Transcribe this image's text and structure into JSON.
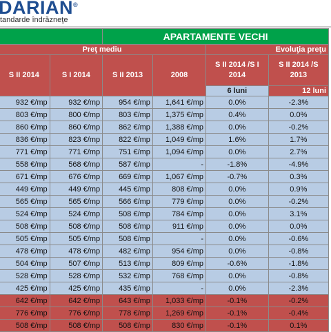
{
  "logo": {
    "name": "DARIAN",
    "tagline": "tandarde îndrăzneţe"
  },
  "table": {
    "title": "APARTAMENTE VECHI",
    "group_price": "Preţ mediu",
    "group_evolution": "Evoluţia preţu",
    "columns": [
      "S II 2014",
      "S I 2014",
      "S II 2013",
      "2008",
      "S II 2014 /S I 2014",
      "S II 2014 /S 2013"
    ],
    "subheaders": [
      "6 luni",
      "12 luni"
    ],
    "rows": [
      {
        "style": "blue",
        "cells": [
          "932 €/mp",
          "932 €/mp",
          "954 €/mp",
          "1,641 €/mp",
          "0.0%",
          "-2.3%"
        ]
      },
      {
        "style": "blue",
        "cells": [
          "803 €/mp",
          "800 €/mp",
          "803 €/mp",
          "1,375 €/mp",
          "0.4%",
          "0.0%"
        ]
      },
      {
        "style": "blue",
        "cells": [
          "860 €/mp",
          "860 €/mp",
          "862 €/mp",
          "1,388 €/mp",
          "0.0%",
          "-0.2%"
        ]
      },
      {
        "style": "blue",
        "cells": [
          "836 €/mp",
          "823 €/mp",
          "822 €/mp",
          "1,049 €/mp",
          "1.6%",
          "1.7%"
        ]
      },
      {
        "style": "blue",
        "cells": [
          "771 €/mp",
          "771 €/mp",
          "751 €/mp",
          "1,094 €/mp",
          "0.0%",
          "2.7%"
        ]
      },
      {
        "style": "blue",
        "cells": [
          "558 €/mp",
          "568 €/mp",
          "587 €/mp",
          "-",
          "-1.8%",
          "-4.9%"
        ]
      },
      {
        "style": "blue",
        "cells": [
          "671 €/mp",
          "676 €/mp",
          "669 €/mp",
          "1,067 €/mp",
          "-0.7%",
          "0.3%"
        ]
      },
      {
        "style": "blue",
        "cells": [
          "449 €/mp",
          "449 €/mp",
          "445 €/mp",
          "808 €/mp",
          "0.0%",
          "0.9%"
        ]
      },
      {
        "style": "blue",
        "cells": [
          "565 €/mp",
          "565 €/mp",
          "566 €/mp",
          "779 €/mp",
          "0.0%",
          "-0.2%"
        ]
      },
      {
        "style": "blue",
        "cells": [
          "524 €/mp",
          "524 €/mp",
          "508 €/mp",
          "784 €/mp",
          "0.0%",
          "3.1%"
        ]
      },
      {
        "style": "blue",
        "cells": [
          "508 €/mp",
          "508 €/mp",
          "508 €/mp",
          "911 €/mp",
          "0.0%",
          "0.0%"
        ]
      },
      {
        "style": "blue",
        "cells": [
          "505 €/mp",
          "505 €/mp",
          "508 €/mp",
          "-",
          "0.0%",
          "-0.6%"
        ]
      },
      {
        "style": "blue",
        "cells": [
          "478 €/mp",
          "478 €/mp",
          "482 €/mp",
          "954 €/mp",
          "0.0%",
          "-0.8%"
        ]
      },
      {
        "style": "blue",
        "cells": [
          "504 €/mp",
          "507 €/mp",
          "513 €/mp",
          "809 €/mp",
          "-0.6%",
          "-1.8%"
        ]
      },
      {
        "style": "blue",
        "cells": [
          "528 €/mp",
          "528 €/mp",
          "532 €/mp",
          "768 €/mp",
          "0.0%",
          "-0.8%"
        ]
      },
      {
        "style": "blue",
        "cells": [
          "425 €/mp",
          "425 €/mp",
          "435 €/mp",
          "-",
          "0.0%",
          "-2.3%"
        ]
      },
      {
        "style": "red",
        "cells": [
          "642 €/mp",
          "642 €/mp",
          "643 €/mp",
          "1,033 €/mp",
          "-0.1%",
          "-0.2%"
        ]
      },
      {
        "style": "red",
        "cells": [
          "776 €/mp",
          "776 €/mp",
          "778 €/mp",
          "1,269 €/mp",
          "-0.1%",
          "-0.4%"
        ]
      },
      {
        "style": "red",
        "cells": [
          "508 €/mp",
          "508 €/mp",
          "508 €/mp",
          "830 €/mp",
          "-0.1%",
          "0.1%"
        ]
      }
    ]
  }
}
